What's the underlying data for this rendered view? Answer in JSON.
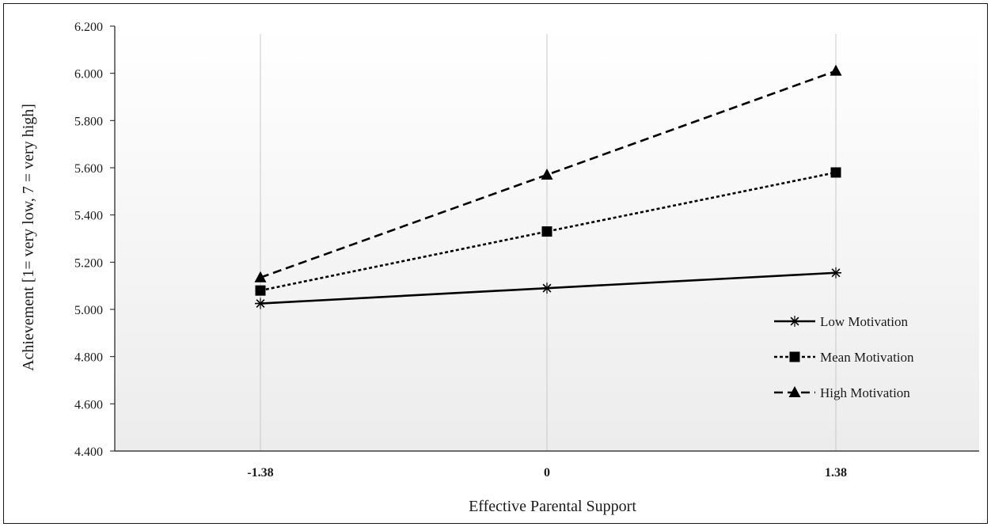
{
  "chart_data": {
    "type": "line",
    "title": "",
    "xlabel": "Effective Parental Support",
    "ylabel": "Achievement [1= very low, 7 = very high]",
    "categories": [
      "-1.38",
      "0",
      "1.38"
    ],
    "ylim": [
      4.4,
      6.2
    ],
    "yticks": [
      "4.400",
      "4.600",
      "4.800",
      "5.000",
      "5.200",
      "5.400",
      "5.600",
      "5.800",
      "6.000",
      "6.200"
    ],
    "grid": "vertical lines at categories",
    "legend_position": "bottom-right",
    "series": [
      {
        "name": "Low Motivation",
        "values": [
          5.025,
          5.09,
          5.155
        ],
        "line_style": "solid",
        "marker": "asterisk"
      },
      {
        "name": "Mean Motivation",
        "values": [
          5.08,
          5.33,
          5.58
        ],
        "line_style": "dotted",
        "marker": "square"
      },
      {
        "name": "High Motivation",
        "values": [
          5.135,
          5.57,
          6.01
        ],
        "line_style": "dashed",
        "marker": "triangle"
      }
    ],
    "colors": {
      "line": "#000000",
      "grid": "#c8c8c8",
      "background_bottom": "#ececec"
    }
  }
}
